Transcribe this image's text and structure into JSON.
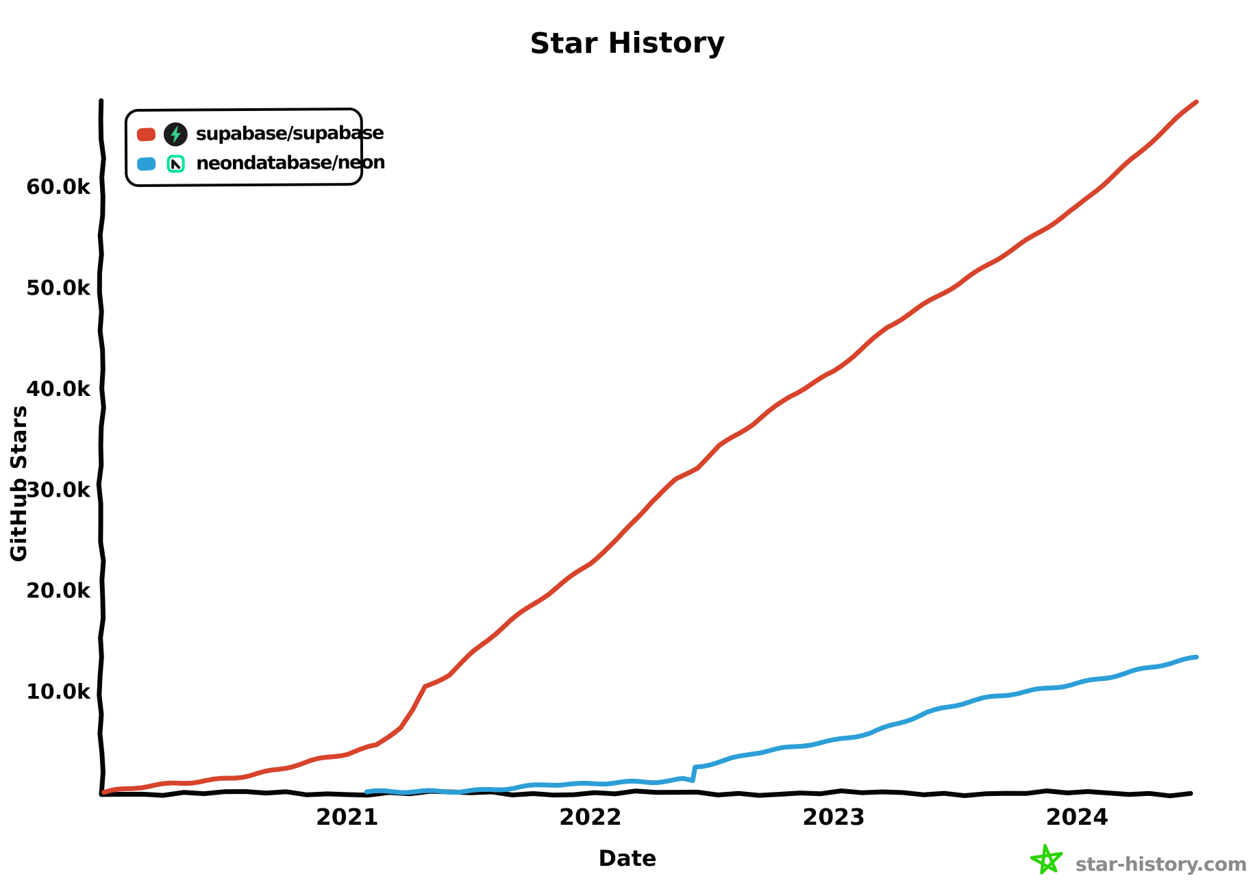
{
  "legend": {
    "items": [
      {
        "label": "supabase/supabase",
        "swatch_color": "#D7432B",
        "icon": "supabase-logo-icon"
      },
      {
        "label": "neondatabase/neon",
        "swatch_color": "#2D9FD8",
        "icon": "neon-logo-icon"
      }
    ]
  },
  "watermark": {
    "text": "star-history.com",
    "star_color": "#2BD400",
    "text_color": "#8A8A8A"
  },
  "colors": {
    "axis": "#050505",
    "supabase_red": "#D7432B",
    "neon_blue": "#2D9FD8",
    "supabase_icon_bg": "#1C1C1C",
    "supabase_bolt_green": "#3ECF8E",
    "neon_green": "#00E599",
    "neon_dark": "#0E1414"
  },
  "chart_data": {
    "type": "line",
    "title": "Star History",
    "xlabel": "Date",
    "ylabel": "GitHub Stars",
    "legend_position": "top-left",
    "grid": false,
    "x_range": [
      2019.99,
      2024.5
    ],
    "y_range": [
      0,
      68600
    ],
    "x_ticks": [
      {
        "label": "2021",
        "value": 2021
      },
      {
        "label": "2022",
        "value": 2022
      },
      {
        "label": "2023",
        "value": 2023
      },
      {
        "label": "2024",
        "value": 2024
      }
    ],
    "y_ticks": [
      {
        "label": "10.0k",
        "value": 10000
      },
      {
        "label": "20.0k",
        "value": 20000
      },
      {
        "label": "30.0k",
        "value": 30000
      },
      {
        "label": "40.0k",
        "value": 40000
      },
      {
        "label": "50.0k",
        "value": 50000
      },
      {
        "label": "60.0k",
        "value": 60000
      }
    ],
    "series": [
      {
        "name": "supabase/supabase",
        "color": "#D7432B",
        "points": [
          [
            2020.0,
            0
          ],
          [
            2020.15,
            500
          ],
          [
            2020.3,
            950
          ],
          [
            2020.45,
            1400
          ],
          [
            2020.6,
            1900
          ],
          [
            2020.72,
            2400
          ],
          [
            2020.85,
            3100
          ],
          [
            2021.0,
            3800
          ],
          [
            2021.12,
            4700
          ],
          [
            2021.22,
            6600
          ],
          [
            2021.27,
            8300
          ],
          [
            2021.32,
            10600
          ],
          [
            2021.42,
            11900
          ],
          [
            2021.52,
            14100
          ],
          [
            2021.67,
            17000
          ],
          [
            2021.83,
            19700
          ],
          [
            2022.0,
            22800
          ],
          [
            2022.11,
            25200
          ],
          [
            2022.25,
            29000
          ],
          [
            2022.35,
            31100
          ],
          [
            2022.44,
            32300
          ],
          [
            2022.53,
            34300
          ],
          [
            2022.67,
            36500
          ],
          [
            2022.82,
            39300
          ],
          [
            2023.0,
            41900
          ],
          [
            2023.22,
            46200
          ],
          [
            2023.51,
            50300
          ],
          [
            2023.79,
            54800
          ],
          [
            2024.0,
            58200
          ],
          [
            2024.25,
            63200
          ],
          [
            2024.49,
            68500
          ]
        ]
      },
      {
        "name": "neondatabase/neon",
        "color": "#2D9FD8",
        "points": [
          [
            2021.08,
            0
          ],
          [
            2021.25,
            100
          ],
          [
            2021.55,
            400
          ],
          [
            2021.83,
            800
          ],
          [
            2021.95,
            750
          ],
          [
            2022.0,
            800
          ],
          [
            2022.12,
            1050
          ],
          [
            2022.25,
            1200
          ],
          [
            2022.38,
            1500
          ],
          [
            2022.42,
            1350
          ],
          [
            2022.43,
            2700
          ],
          [
            2022.55,
            3250
          ],
          [
            2022.67,
            3900
          ],
          [
            2022.82,
            4400
          ],
          [
            2023.0,
            5200
          ],
          [
            2023.15,
            6100
          ],
          [
            2023.38,
            8000
          ],
          [
            2023.56,
            9000
          ],
          [
            2023.81,
            10100
          ],
          [
            2024.0,
            11000
          ],
          [
            2024.25,
            12200
          ],
          [
            2024.49,
            13300
          ]
        ]
      }
    ]
  }
}
